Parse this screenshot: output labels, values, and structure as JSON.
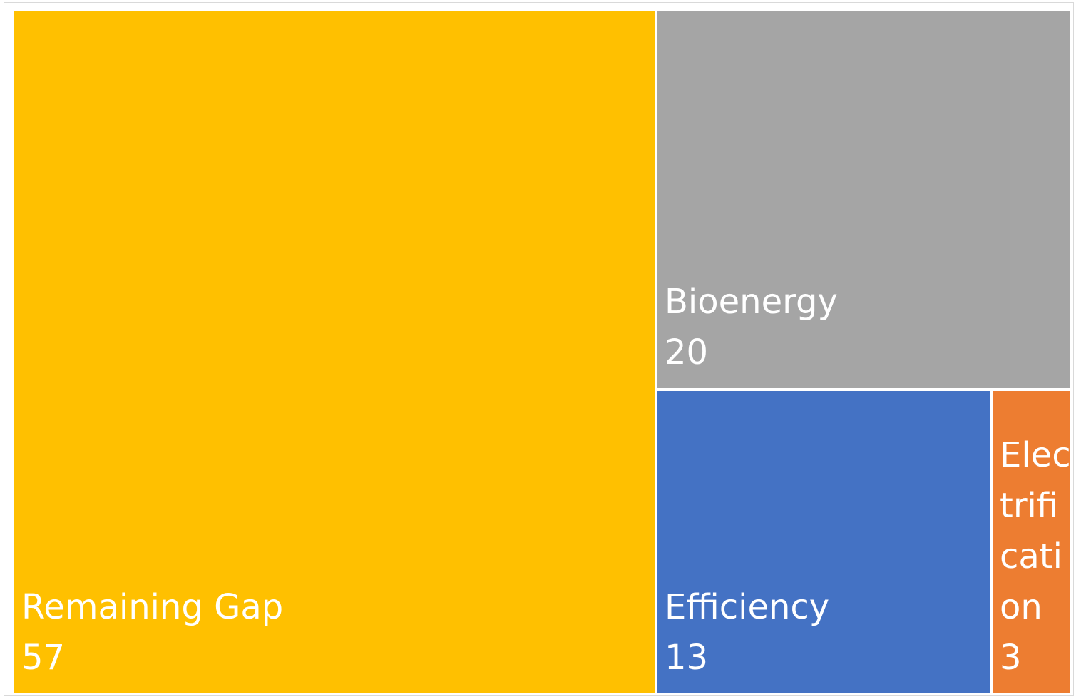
{
  "chart_data": {
    "type": "treemap",
    "title": "",
    "items": [
      {
        "name": "Remaining Gap",
        "value": 57,
        "color": "#FFC000"
      },
      {
        "name": "Bioenergy",
        "value": 20,
        "color": "#A5A5A5"
      },
      {
        "name": "Efficiency",
        "value": 13,
        "color": "#4472C4"
      },
      {
        "name": "Electrification",
        "value": 3,
        "color": "#ED7D31"
      }
    ]
  }
}
